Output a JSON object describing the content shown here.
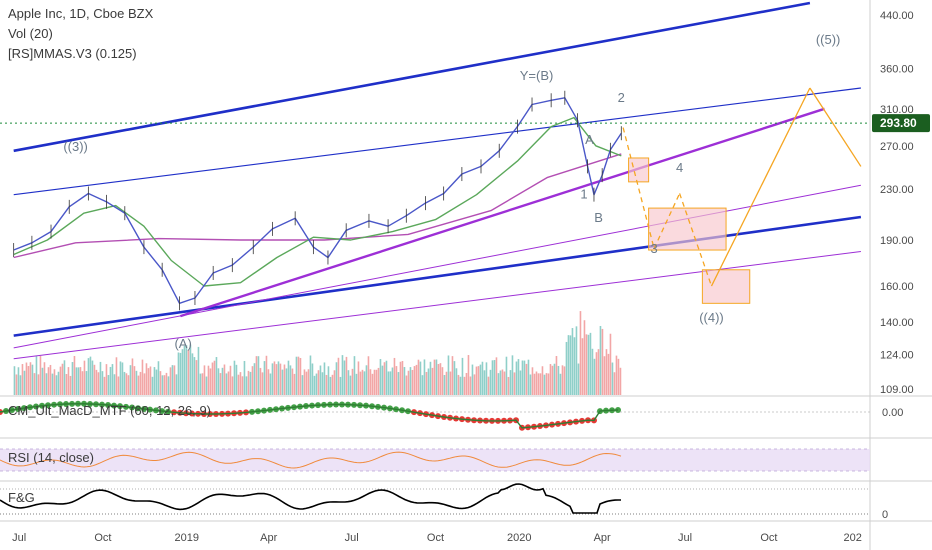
{
  "header": {
    "symbol_line": "Apple Inc, 1D, Cboe BZX",
    "vol_label": "Vol (20)",
    "mmas_label": "[RS]MMAS.V3 (0.125)"
  },
  "panes": {
    "macd_label": "CM_Ult_MacD_MTF (60, 12, 26, 9)",
    "rsi_label": "RSI (14, close)",
    "fg_label": "F&G"
  },
  "colors": {
    "price_line": "#4a57c8",
    "ma_fast": "#5ba85b",
    "ma_slow": "#b34fb3",
    "channel_blue": "#1f2fc8",
    "trend_purple": "#9d2fd6",
    "projection": "#f5a623",
    "box_fill": "#f7c6cc",
    "box_stroke": "#f5a623",
    "wave_label": "#6b7a89",
    "price_tag_bg": "#1b5e20",
    "vol_up": "#8fcfc9",
    "vol_down": "#f2a6a6",
    "rsi_band": "#e8dcf5",
    "rsi_line": "#f08a3c",
    "fg_line": "#000000"
  },
  "chart_data": {
    "type": "line",
    "title": "Apple Inc, 1D, Cboe BZX",
    "y_scale": "log",
    "ylim": [
      100,
      460
    ],
    "x_tick_labels": [
      "Jul",
      "Oct",
      "2019",
      "Apr",
      "Jul",
      "Oct",
      "2020",
      "Apr",
      "Jul",
      "Oct",
      "202"
    ],
    "y_tick_labels": [
      "440.00",
      "360.00",
      "310.00",
      "270.00",
      "230.00",
      "190.00",
      "160.00",
      "140.00",
      "124.00",
      "109.00"
    ],
    "y_tick_values": [
      440,
      360,
      310,
      270,
      230,
      190,
      160,
      140,
      124,
      109
    ],
    "last_price_label": "293.80",
    "last_price": 293.8,
    "macd_axis_label": "0.00",
    "fg_axis_label": "0",
    "wave_labels": [
      {
        "text": "((3))",
        "date": "2018-09-01",
        "price": 265
      },
      {
        "text": "Y=(B)",
        "date": "2020-01-20",
        "price": 345
      },
      {
        "text": "((5))",
        "date": "2020-12-05",
        "price": 395
      },
      {
        "text": "(A)",
        "date": "2018-12-28",
        "price": 127
      },
      {
        "text": "A",
        "date": "2020-03-18",
        "price": 272
      },
      {
        "text": "1",
        "date": "2020-03-12",
        "price": 222
      },
      {
        "text": "B",
        "date": "2020-03-28",
        "price": 203
      },
      {
        "text": "2",
        "date": "2020-04-22",
        "price": 318
      },
      {
        "text": "3",
        "date": "2020-05-28",
        "price": 181
      },
      {
        "text": "4",
        "date": "2020-06-25",
        "price": 245
      },
      {
        "text": "((4))",
        "date": "2020-07-30",
        "price": 140
      }
    ],
    "price_series": {
      "name": "AAPL",
      "x": [
        "2018-06-25",
        "2018-07-15",
        "2018-08-05",
        "2018-08-25",
        "2018-09-15",
        "2018-10-05",
        "2018-10-25",
        "2018-11-15",
        "2018-12-05",
        "2018-12-24",
        "2019-01-10",
        "2019-01-30",
        "2019-02-20",
        "2019-03-15",
        "2019-04-05",
        "2019-04-30",
        "2019-05-20",
        "2019-06-05",
        "2019-06-25",
        "2019-07-20",
        "2019-08-10",
        "2019-08-30",
        "2019-09-20",
        "2019-10-10",
        "2019-10-30",
        "2019-11-20",
        "2019-12-10",
        "2019-12-30",
        "2020-01-15",
        "2020-02-05",
        "2020-02-20",
        "2020-03-05",
        "2020-03-16",
        "2020-03-23",
        "2020-04-01",
        "2020-04-10",
        "2020-04-22"
      ],
      "y": [
        183,
        188,
        196,
        215,
        226,
        219,
        210,
        185,
        170,
        150,
        153,
        168,
        173,
        185,
        198,
        206,
        185,
        178,
        197,
        204,
        200,
        208,
        218,
        226,
        243,
        250,
        265,
        290,
        315,
        320,
        323,
        297,
        250,
        225,
        242,
        266,
        283
      ]
    },
    "ma_fast": {
      "x": [
        "2018-06-25",
        "2018-08-01",
        "2018-09-10",
        "2018-10-15",
        "2018-11-15",
        "2018-12-15",
        "2019-01-20",
        "2019-03-01",
        "2019-04-10",
        "2019-05-20",
        "2019-06-30",
        "2019-08-15",
        "2019-10-01",
        "2019-11-15",
        "2019-12-30",
        "2020-02-05",
        "2020-03-01",
        "2020-03-25",
        "2020-04-22"
      ],
      "y": [
        180,
        190,
        210,
        216,
        200,
        176,
        160,
        162,
        178,
        192,
        190,
        196,
        205,
        225,
        255,
        290,
        300,
        270,
        260
      ]
    },
    "ma_slow": {
      "x": [
        "2018-06-25",
        "2018-09-01",
        "2018-12-01",
        "2019-03-01",
        "2019-06-01",
        "2019-09-01",
        "2019-12-01",
        "2020-02-01",
        "2020-04-22"
      ],
      "y": [
        178,
        188,
        191,
        190,
        190,
        194,
        212,
        240,
        262
      ]
    },
    "blue_channel_upper": {
      "x": [
        "2018-06-25",
        "2020-11-15"
      ],
      "y": [
        265,
        460
      ]
    },
    "blue_channel_mid": {
      "x": [
        "2018-06-25",
        "2021-01-10"
      ],
      "y": [
        225,
        335
      ]
    },
    "blue_channel_lower": {
      "x": [
        "2018-06-25",
        "2021-01-10"
      ],
      "y": [
        133,
        207
      ]
    },
    "purple_support": {
      "x": [
        "2018-12-25",
        "2020-12-01"
      ],
      "y": [
        143,
        310
      ]
    },
    "purple_lower_1": {
      "x": [
        "2018-06-25",
        "2021-01-10"
      ],
      "y": [
        127,
        233
      ]
    },
    "purple_lower_2": {
      "x": [
        "2018-06-25",
        "2021-01-10"
      ],
      "y": [
        122,
        182
      ]
    },
    "projection_path": {
      "x": [
        "2020-04-24",
        "2020-05-28",
        "2020-06-25",
        "2020-07-30",
        "2020-11-15",
        "2021-01-10"
      ],
      "y": [
        289,
        184,
        226,
        160,
        335,
        250
      ]
    },
    "target_boxes": [
      {
        "x0": "2020-04-30",
        "x1": "2020-05-22",
        "y0": 236,
        "y1": 258
      },
      {
        "x0": "2020-05-22",
        "x1": "2020-08-15",
        "y0": 183,
        "y1": 214
      },
      {
        "x0": "2020-07-20",
        "x1": "2020-09-10",
        "y0": 150,
        "y1": 170
      }
    ],
    "last_price_line": {
      "y": 293.8
    },
    "volume": {
      "ylim": [
        0,
        100
      ]
    },
    "rsi": {
      "ylim": [
        0,
        100
      ],
      "band": [
        30,
        70
      ]
    }
  }
}
